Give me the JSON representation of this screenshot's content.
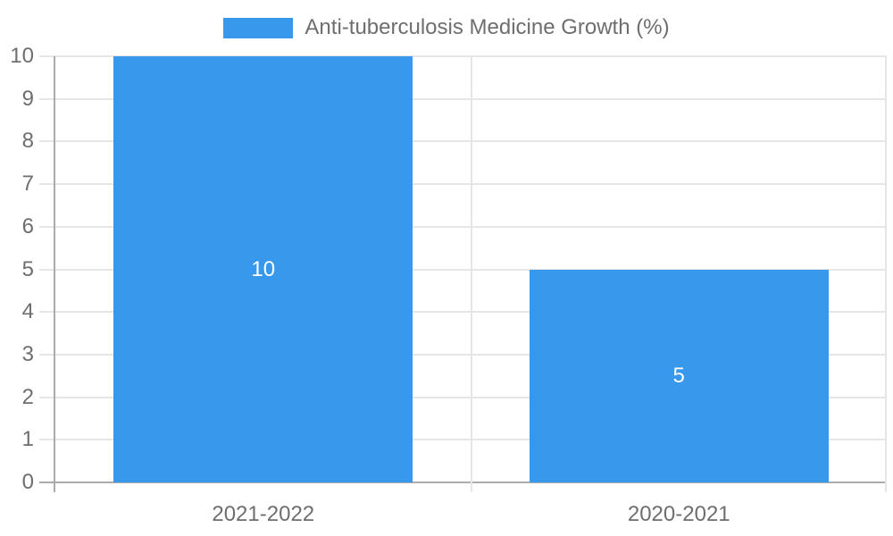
{
  "legend": {
    "label": "Anti-tuberculosis Medicine Growth (%)"
  },
  "colors": {
    "bar": "#3899EC",
    "gridline": "#e6e6e6",
    "axis_line": "#ababab",
    "axis_text": "#6e6e6e",
    "bar_label_text": "#ffffff",
    "background": "#ffffff"
  },
  "chart_data": {
    "type": "bar",
    "title": "",
    "categories": [
      "2021-2022",
      "2020-2021"
    ],
    "values": [
      10,
      5
    ],
    "data_labels": [
      "10",
      "5"
    ],
    "series_name": "Anti-tuberculosis Medicine Growth (%)",
    "xlabel": "",
    "ylabel": "",
    "ylim": [
      0,
      10
    ],
    "yticks": [
      0,
      1,
      2,
      3,
      4,
      5,
      6,
      7,
      8,
      9,
      10
    ],
    "grid": "on",
    "legend_position": "top",
    "bar_fraction_of_slot": 0.72
  }
}
